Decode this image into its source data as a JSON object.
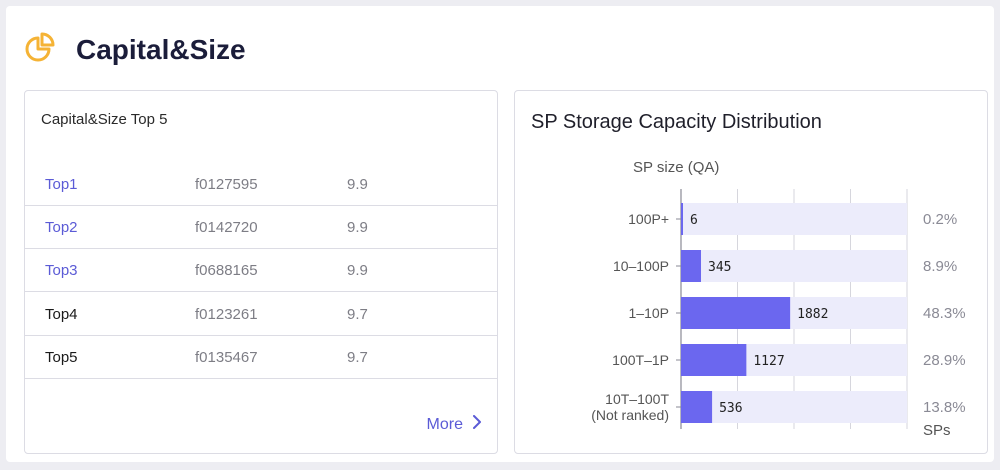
{
  "page": {
    "title": "Capital&Size"
  },
  "top5": {
    "title": "Capital&Size Top 5",
    "rows": [
      {
        "rank": "Top1",
        "id": "f0127595",
        "value": "9.9",
        "link": true
      },
      {
        "rank": "Top2",
        "id": "f0142720",
        "value": "9.9",
        "link": true
      },
      {
        "rank": "Top3",
        "id": "f0688165",
        "value": "9.9",
        "link": true
      },
      {
        "rank": "Top4",
        "id": "f0123261",
        "value": "9.7",
        "link": false
      },
      {
        "rank": "Top5",
        "id": "f0135467",
        "value": "9.7",
        "link": false
      }
    ],
    "more_label": "More"
  },
  "colors": {
    "accent": "#5b5bd6",
    "bar": "#6b67ef",
    "track": "#ececfb",
    "icon": "#f5b335"
  },
  "chart_data": {
    "type": "bar",
    "orientation": "horizontal",
    "title": "SP Storage Capacity Distribution",
    "ylabel": "SP size (QA)",
    "xlabel": "SPs",
    "categories": [
      "100P+",
      "10–100P",
      "1–10P",
      "100T–1P",
      "10T–100T\n(Not ranked)"
    ],
    "values": [
      6,
      345,
      1882,
      1127,
      536
    ],
    "percents": [
      "0.2%",
      "8.9%",
      "48.3%",
      "28.9%",
      "13.8%"
    ],
    "xlim": [
      0,
      3897
    ],
    "grid": true
  }
}
